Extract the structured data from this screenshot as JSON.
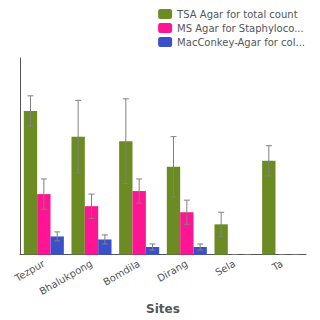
{
  "chart_data": {
    "type": "bar",
    "xlabel": "Sites",
    "categories": [
      "Tezpur",
      "Bhalukpong",
      "Bomdila",
      "Dirang",
      "Sela",
      "Ta"
    ],
    "series": [
      {
        "name": "TSA Agar for total count",
        "color": "#6b8c23",
        "values": [
          95,
          78,
          75,
          58,
          20,
          62
        ],
        "errors": [
          10,
          24,
          28,
          20,
          8,
          10
        ]
      },
      {
        "name": "MS Agar for Staphyloco...",
        "color": "#ff1493",
        "values": [
          40,
          32,
          42,
          28,
          0,
          0
        ],
        "errors": [
          10,
          8,
          8,
          8,
          0,
          0
        ]
      },
      {
        "name": "MacConkey-Agar for col...",
        "color": "#3b4fc8",
        "values": [
          12,
          10,
          5,
          5,
          0,
          0
        ],
        "errors": [
          3,
          3,
          2,
          2,
          0,
          0
        ]
      }
    ],
    "ylim": [
      0,
      130
    ],
    "tick_labels": "x",
    "grid": false,
    "legend": "upper right"
  }
}
